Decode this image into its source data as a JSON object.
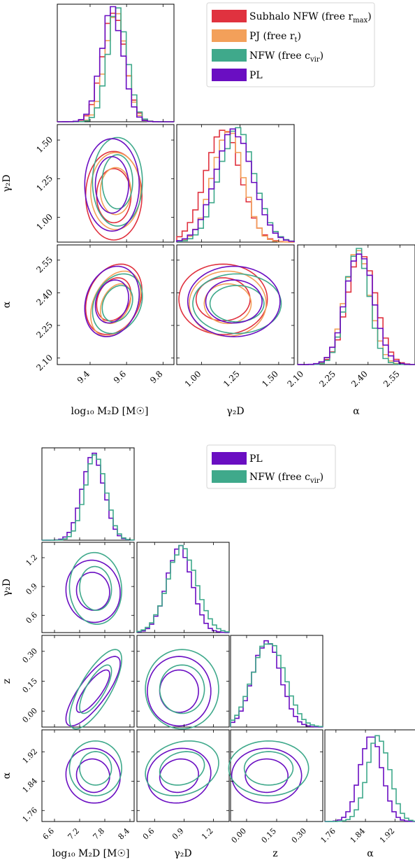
{
  "colors": {
    "red": "#e0323f",
    "orange": "#f3a05a",
    "green": "#3fa98b",
    "purple": "#6a0ec2",
    "axis": "#000000"
  },
  "chart_data": [
    {
      "type": "corner",
      "parameters": [
        "log10_M2D",
        "gamma2D",
        "alpha"
      ],
      "axis_labels": {
        "log10_M2D": "log₁₀ M₂D [M☉]",
        "gamma2D": "γ₂D",
        "alpha": "α"
      },
      "ranges": {
        "log10_M2D": [
          9.22,
          9.86
        ],
        "gamma2D": [
          0.84,
          1.6
        ],
        "alpha": [
          2.07,
          2.62
        ]
      },
      "ticks": {
        "log10_M2D": {
          "values": [
            9.4,
            9.6,
            9.8
          ],
          "labels": [
            "9.4",
            "9.6",
            "9.8"
          ]
        },
        "gamma2D": {
          "values": [
            1.0,
            1.25,
            1.5
          ],
          "labels": [
            "1.00",
            "1.25",
            "1.50"
          ]
        },
        "alpha": {
          "values": [
            2.1,
            2.25,
            2.4,
            2.55
          ],
          "labels": [
            "2.10",
            "2.25",
            "2.40",
            "2.55"
          ]
        }
      },
      "legend": {
        "placement": "top-right"
      },
      "series": [
        {
          "name": "Subhalo NFW (free r_max)",
          "legend_main": "Subhalo NFW (free r",
          "legend_sub": "max",
          "legend_tail": ")",
          "color": "red",
          "mean": {
            "log10_M2D": 9.53,
            "gamma2D": 1.14,
            "alpha": 2.37
          },
          "sd": {
            "log10_M2D": 0.062,
            "gamma2D": 0.115,
            "alpha": 0.065
          },
          "rho": {
            "log10_M2D|gamma2D": 0.0,
            "log10_M2D|alpha": 0.25,
            "gamma2D|alpha": 0.0
          }
        },
        {
          "name": "PJ (free r_t)",
          "legend_main": "PJ (free r",
          "legend_sub": "t",
          "legend_tail": ")",
          "color": "orange",
          "mean": {
            "log10_M2D": 9.54,
            "gamma2D": 1.17,
            "alpha": 2.35
          },
          "sd": {
            "log10_M2D": 0.055,
            "gamma2D": 0.1,
            "alpha": 0.06
          },
          "rho": {
            "log10_M2D|gamma2D": 0.0,
            "log10_M2D|alpha": 0.35,
            "gamma2D|alpha": 0.0
          }
        },
        {
          "name": "NFW (free c_vir)",
          "legend_main": "NFW (free c",
          "legend_sub": "vir",
          "legend_tail": ")",
          "color": "green",
          "mean": {
            "log10_M2D": 9.55,
            "gamma2D": 1.23,
            "alpha": 2.35
          },
          "sd": {
            "log10_M2D": 0.055,
            "gamma2D": 0.115,
            "alpha": 0.055
          },
          "rho": {
            "log10_M2D|gamma2D": 0.0,
            "log10_M2D|alpha": 0.25,
            "gamma2D|alpha": 0.0
          }
        },
        {
          "name": "PL",
          "legend_main": "PL",
          "legend_sub": "",
          "legend_tail": "",
          "color": "purple",
          "mean": {
            "log10_M2D": 9.52,
            "gamma2D": 1.21,
            "alpha": 2.36
          },
          "sd": {
            "log10_M2D": 0.06,
            "gamma2D": 0.12,
            "alpha": 0.065
          },
          "rho": {
            "log10_M2D|gamma2D": 0.0,
            "log10_M2D|alpha": 0.2,
            "gamma2D|alpha": 0.0
          }
        }
      ]
    },
    {
      "type": "corner",
      "parameters": [
        "log10_M2D",
        "gamma2D",
        "z",
        "alpha"
      ],
      "axis_labels": {
        "log10_M2D": "log₁₀ M₂D [M☉]",
        "gamma2D": "γ₂D",
        "z": "z",
        "alpha": "α"
      },
      "ranges": {
        "log10_M2D": [
          6.3,
          8.5
        ],
        "gamma2D": [
          0.42,
          1.36
        ],
        "z": [
          -0.08,
          0.38
        ],
        "alpha": [
          1.73,
          1.98
        ]
      },
      "ticks": {
        "log10_M2D": {
          "values": [
            6.6,
            7.2,
            7.8,
            8.4
          ],
          "labels": [
            "6.6",
            "7.2",
            "7.8",
            "8.4"
          ]
        },
        "gamma2D": {
          "values": [
            0.6,
            0.9,
            1.2
          ],
          "labels": [
            "0.6",
            "0.9",
            "1.2"
          ]
        },
        "z": {
          "values": [
            0.0,
            0.15,
            0.3
          ],
          "labels": [
            "0.00",
            "0.15",
            "0.30"
          ]
        },
        "alpha": {
          "values": [
            1.76,
            1.84,
            1.92
          ],
          "labels": [
            "1.76",
            "1.84",
            "1.92"
          ]
        }
      },
      "legend": {
        "placement": "top-right"
      },
      "series": [
        {
          "name": "PL",
          "legend_main": "PL",
          "legend_sub": "",
          "legend_tail": "",
          "color": "purple",
          "mean": {
            "log10_M2D": 7.52,
            "gamma2D": 0.85,
            "z": 0.1,
            "alpha": 1.855
          },
          "sd": {
            "log10_M2D": 0.26,
            "gamma2D": 0.13,
            "z": 0.07,
            "alpha": 0.03
          },
          "rho": {
            "log10_M2D|gamma2D": -0.05,
            "log10_M2D|z": 0.8,
            "log10_M2D|alpha": -0.05,
            "gamma2D|z": 0.0,
            "gamma2D|alpha": 0.1,
            "z|alpha": 0.0
          }
        },
        {
          "name": "NFW (free c_vir)",
          "legend_main": "NFW (free c",
          "legend_sub": "vir",
          "legend_tail": ")",
          "color": "green",
          "mean": {
            "log10_M2D": 7.58,
            "gamma2D": 0.88,
            "z": 0.11,
            "alpha": 1.875
          },
          "sd": {
            "log10_M2D": 0.25,
            "gamma2D": 0.15,
            "z": 0.08,
            "alpha": 0.03
          },
          "rho": {
            "log10_M2D|gamma2D": -0.05,
            "log10_M2D|z": 0.75,
            "log10_M2D|alpha": 0.0,
            "gamma2D|z": 0.0,
            "gamma2D|alpha": 0.2,
            "z|alpha": 0.0
          }
        }
      ]
    }
  ]
}
